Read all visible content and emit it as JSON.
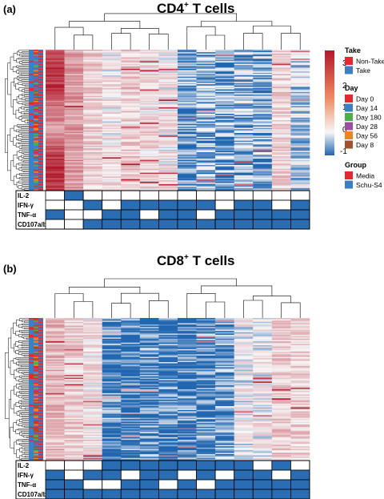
{
  "panels": {
    "a": {
      "label": "(a)",
      "title_main": "CD4",
      "title_sup": "+",
      "title_rest": " T cells"
    },
    "b": {
      "label": "(b)",
      "title_main": "CD8",
      "title_sup": "+",
      "title_rest": " T cells"
    }
  },
  "legend": {
    "scale_ticks": [
      "3",
      "2",
      "1",
      "0",
      "-1"
    ],
    "take_title": "Take",
    "take_items": [
      {
        "label": "Non-Take",
        "color": "#e8262d"
      },
      {
        "label": "Take",
        "color": "#3a80c3"
      }
    ],
    "day_title": "Day",
    "day_items": [
      {
        "label": "Day 0",
        "color": "#e8262d"
      },
      {
        "label": "Day 14",
        "color": "#3a80c3"
      },
      {
        "label": "Day 180",
        "color": "#4bb04a"
      },
      {
        "label": "Day 28",
        "color": "#9b4da0"
      },
      {
        "label": "Day 56",
        "color": "#f58220"
      },
      {
        "label": "Day 8",
        "color": "#a0522d"
      }
    ],
    "group_title": "Group",
    "group_items": [
      {
        "label": "Media",
        "color": "#e8262d"
      },
      {
        "label": "Schu-S4",
        "color": "#3a80c3"
      }
    ]
  },
  "chart_data": [
    {
      "type": "heatmap",
      "title": "CD4+ T cells",
      "color_scale": {
        "min": -1,
        "max": 3.5,
        "low": "#2166b0",
        "mid": "#f7f7f7",
        "high": "#b2182b"
      },
      "columns": 14,
      "column_means": [
        2.4,
        1.4,
        0.6,
        0.3,
        0.7,
        0.5,
        0.3,
        -0.6,
        -0.5,
        -0.6,
        -0.4,
        -0.5,
        0.6,
        -0.2
      ],
      "function_rows": [
        "IL-2",
        "IFN-γ",
        "TNF-α",
        "CD107a/b"
      ],
      "function_matrix": [
        [
          0,
          1,
          0,
          0,
          0,
          0,
          0,
          0,
          0,
          0,
          0,
          0,
          0,
          0
        ],
        [
          0,
          0,
          1,
          0,
          1,
          1,
          1,
          1,
          1,
          0,
          1,
          1,
          0,
          1
        ],
        [
          1,
          0,
          0,
          1,
          1,
          0,
          1,
          1,
          0,
          1,
          1,
          1,
          1,
          1
        ],
        [
          0,
          0,
          1,
          1,
          1,
          1,
          1,
          1,
          1,
          1,
          1,
          1,
          1,
          1
        ]
      ]
    },
    {
      "type": "heatmap",
      "title": "CD8+ T cells",
      "color_scale": {
        "min": -1,
        "max": 3.5,
        "low": "#2166b0",
        "mid": "#f7f7f7",
        "high": "#b2182b"
      },
      "columns": 14,
      "column_means": [
        1.0,
        0.6,
        0.4,
        -0.8,
        -0.85,
        -0.8,
        -0.85,
        -0.8,
        -0.75,
        -0.7,
        0.1,
        0.2,
        0.7,
        0.6
      ],
      "function_rows": [
        "IL-2",
        "IFN-γ",
        "TNF-α",
        "CD107a/b"
      ],
      "function_matrix": [
        [
          0,
          0,
          0,
          1,
          1,
          1,
          1,
          1,
          1,
          1,
          1,
          0,
          1,
          0
        ],
        [
          1,
          0,
          1,
          1,
          0,
          1,
          1,
          0,
          1,
          0,
          1,
          1,
          0,
          1
        ],
        [
          1,
          1,
          0,
          0,
          1,
          1,
          0,
          1,
          0,
          1,
          1,
          1,
          1,
          1
        ],
        [
          1,
          1,
          1,
          1,
          1,
          1,
          1,
          1,
          1,
          1,
          1,
          1,
          1,
          1
        ]
      ]
    }
  ]
}
